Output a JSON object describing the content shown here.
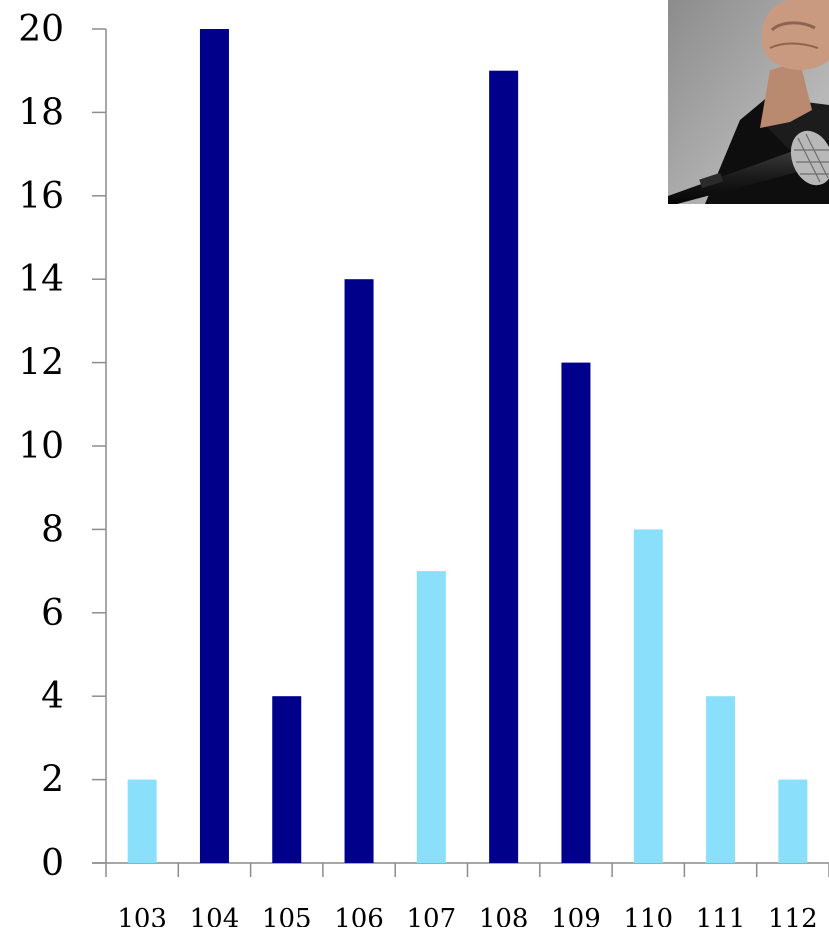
{
  "chart_data": {
    "type": "bar",
    "title": "",
    "xlabel": "",
    "ylabel": "",
    "categories": [
      "103",
      "104",
      "105",
      "106",
      "107",
      "108",
      "109",
      "110",
      "111",
      "112"
    ],
    "values": [
      2,
      20,
      4,
      14,
      7,
      19,
      12,
      8,
      4,
      2
    ],
    "bar_colors": [
      "#8ae0fa",
      "#00008b",
      "#00008b",
      "#00008b",
      "#8ae0fa",
      "#00008b",
      "#00008b",
      "#8ae0fa",
      "#8ae0fa",
      "#8ae0fa"
    ],
    "ylim": [
      0,
      20
    ],
    "yticks": [
      0,
      2,
      4,
      6,
      8,
      10,
      12,
      14,
      16,
      18,
      20
    ],
    "grid": false,
    "legend": "none"
  },
  "photo": {
    "subject": "fist-and-microphone-photo"
  }
}
